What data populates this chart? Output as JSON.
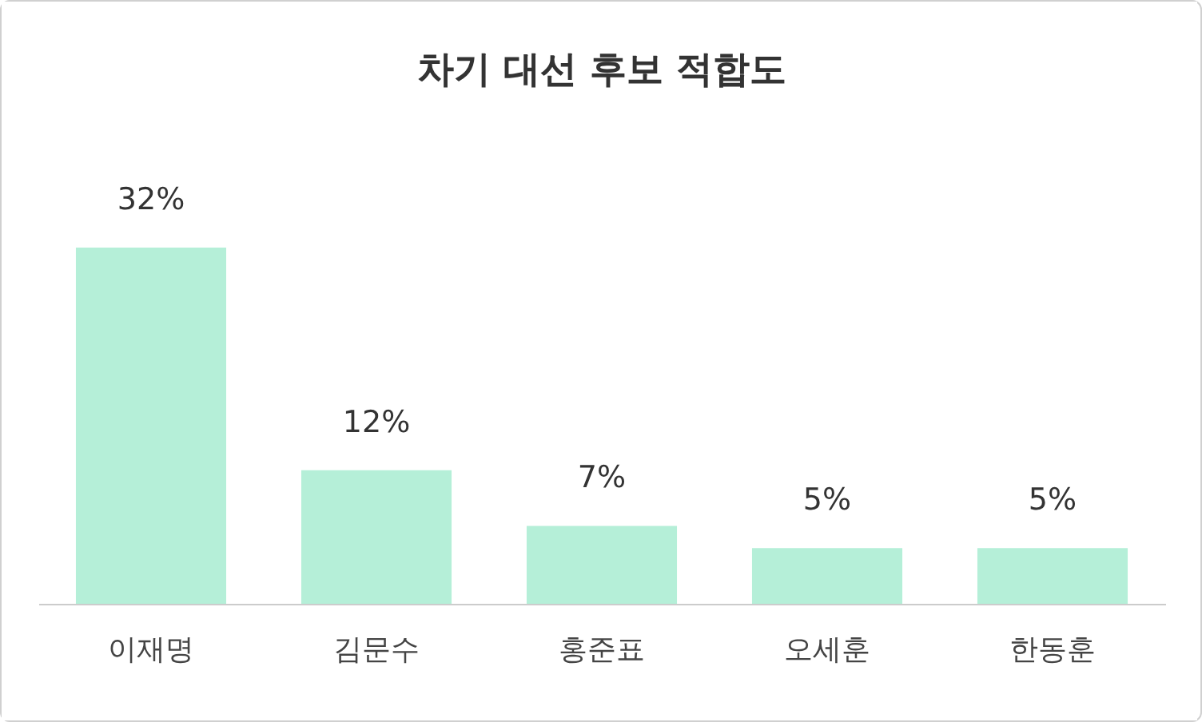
{
  "chart_data": {
    "type": "bar",
    "title": "차기 대선 후보 적합도",
    "categories": [
      "이재명",
      "김문수",
      "홍준표",
      "오세훈",
      "한동훈"
    ],
    "values": [
      32,
      12,
      7,
      5,
      5
    ],
    "value_labels": [
      "32%",
      "12%",
      "7%",
      "5%",
      "5%"
    ],
    "color": "#b5efd8"
  }
}
